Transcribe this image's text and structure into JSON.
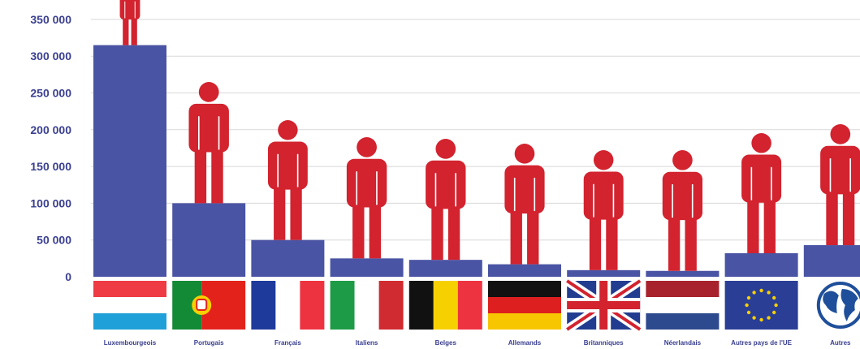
{
  "chart_data": {
    "type": "bar",
    "title": "",
    "xlabel": "",
    "ylabel": "",
    "ylim": [
      0,
      370000
    ],
    "grid": true,
    "y_ticks": [
      "0",
      "50 000",
      "100 000",
      "150 000",
      "200 000",
      "250 000",
      "300 000",
      "350 000"
    ],
    "y_tick_values": [
      0,
      50000,
      100000,
      150000,
      200000,
      250000,
      300000,
      350000
    ],
    "categories": [
      "Luxembourgeois",
      "Portugais",
      "Français",
      "Italiens",
      "Belges",
      "Allemands",
      "Britanniques",
      "Néerlandais",
      "Autres pays de l'UE",
      "Autres"
    ],
    "values": [
      315000,
      100000,
      50000,
      25000,
      23000,
      17000,
      9000,
      8000,
      32000,
      43000
    ],
    "flags": [
      "luxembourg-flag",
      "portugal-flag",
      "france-flag",
      "italy-flag",
      "belgium-flag",
      "germany-flag",
      "uk-flag",
      "netherlands-flag",
      "eu-flag",
      "globe-icon"
    ]
  },
  "colors": {
    "bar": "#4a54a4",
    "person": "#d2232f",
    "grid": "#d8d8d8",
    "text": "#3a3f8f"
  }
}
